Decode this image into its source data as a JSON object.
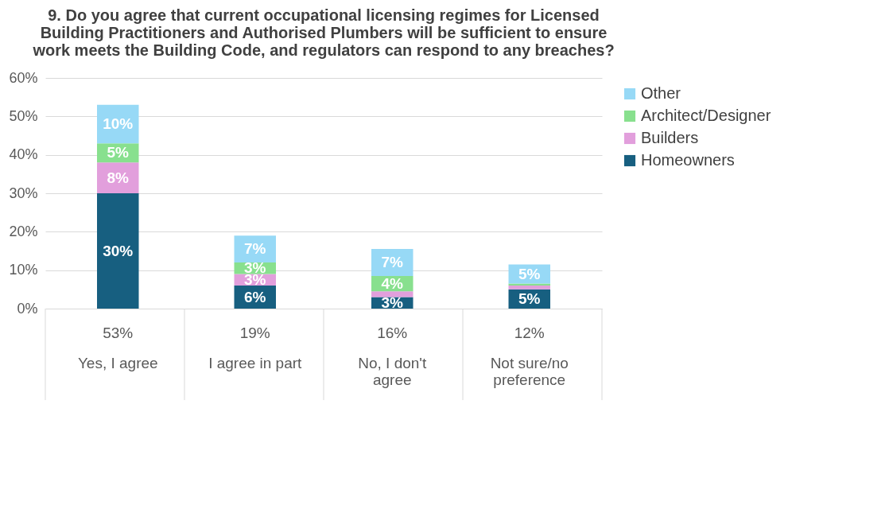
{
  "chart_data": {
    "type": "bar",
    "stacked": true,
    "title": "9. Do you agree that current occupational licensing regimes for Licensed Building Practitioners and Authorised Plumbers will be sufficient to ensure work meets the Building Code, and regulators can respond to any breaches?",
    "categories": [
      "Yes, I agree",
      "I agree in part",
      "No, I don't agree",
      "Not sure/no preference"
    ],
    "series": [
      {
        "name": "Homeowners",
        "color": "#175f80",
        "values": [
          30,
          6,
          3,
          5
        ],
        "value_labels": [
          "30%",
          "6%",
          "3%",
          "5%"
        ]
      },
      {
        "name": "Builders",
        "color": "#e29fdc",
        "values": [
          8,
          3,
          1.5,
          1
        ],
        "value_labels": [
          "8%",
          "3%",
          null,
          null
        ]
      },
      {
        "name": "Architect/Designer",
        "color": "#88e08e",
        "values": [
          5,
          3,
          4,
          0.5
        ],
        "value_labels": [
          "5%",
          "3%",
          "4%",
          null
        ]
      },
      {
        "name": "Other",
        "color": "#97d9f6",
        "values": [
          10,
          7,
          7,
          5
        ],
        "value_labels": [
          "10%",
          "7%",
          "7%",
          "5%"
        ]
      }
    ],
    "totals": [
      "53%",
      "19%",
      "16%",
      "12%"
    ],
    "ylim": [
      0,
      60
    ],
    "yticks": [
      {
        "value": 0,
        "label": "0%"
      },
      {
        "value": 10,
        "label": "10%"
      },
      {
        "value": 20,
        "label": "20%"
      },
      {
        "value": 30,
        "label": "30%"
      },
      {
        "value": 40,
        "label": "40%"
      },
      {
        "value": 50,
        "label": "50%"
      },
      {
        "value": 60,
        "label": "60%"
      }
    ],
    "grid": "y",
    "legend": "right"
  }
}
